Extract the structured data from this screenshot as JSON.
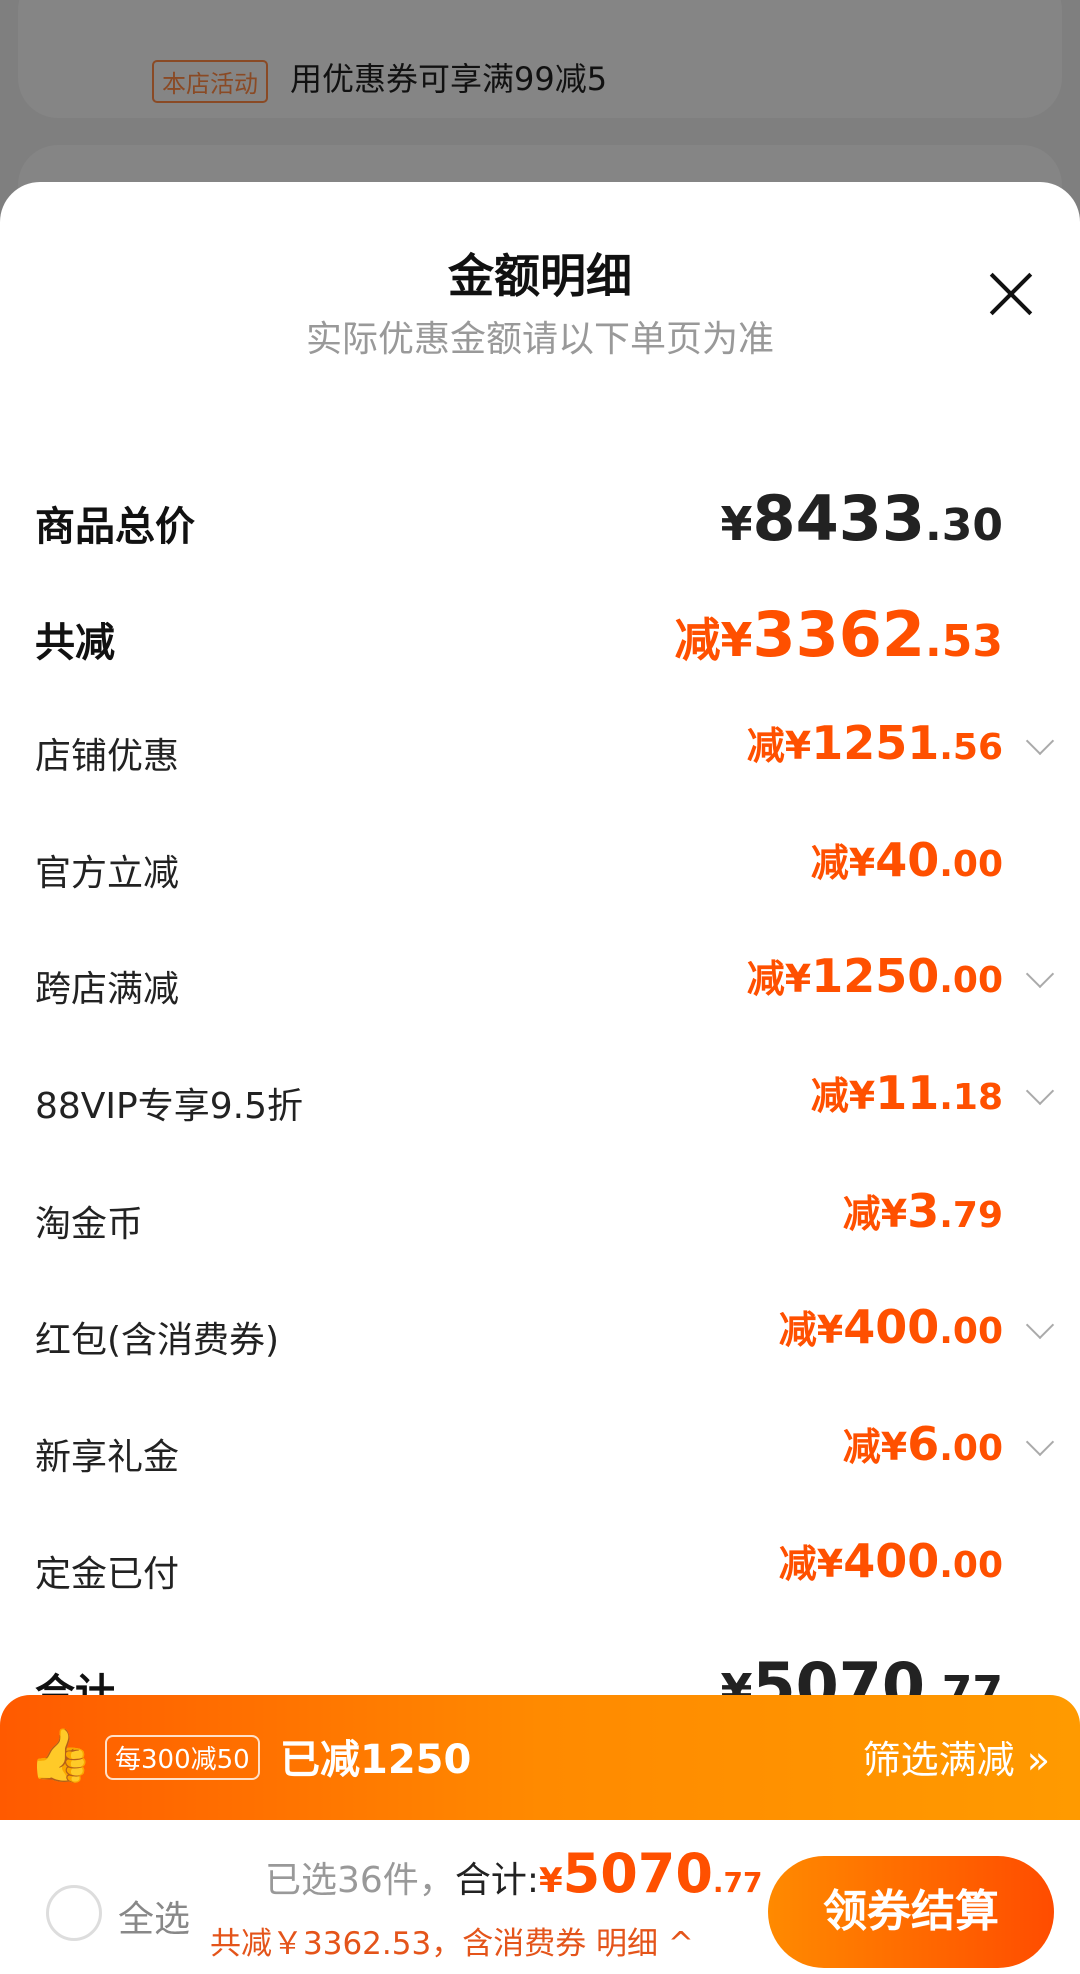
{
  "background": {
    "tag": "本店活动",
    "text": "用优惠券可享满99减5"
  },
  "sheet": {
    "title": "金额明细",
    "subtitle": "实际优惠金额请以下单页为准",
    "rows": [
      {
        "label": "商品总价",
        "prefix": "¥",
        "int": "8433",
        "dec": ".30",
        "bold": true,
        "chevron": false
      },
      {
        "label": "共减",
        "prefix": "减¥",
        "int": "3362",
        "dec": ".53",
        "bold": true,
        "chevron": false
      },
      {
        "label": "店铺优惠",
        "prefix": "减¥",
        "int": "1251",
        "dec": ".56",
        "chevron": true
      },
      {
        "label": "官方立减",
        "prefix": "减¥",
        "int": "40",
        "dec": ".00",
        "chevron": false
      },
      {
        "label": "跨店满减",
        "prefix": "减¥",
        "int": "1250",
        "dec": ".00",
        "chevron": true
      },
      {
        "label": "88VIP专享9.5折",
        "prefix": "减¥",
        "int": "11",
        "dec": ".18",
        "chevron": true
      },
      {
        "label": "淘金币",
        "prefix": "减¥",
        "int": "3",
        "dec": ".79",
        "chevron": false
      },
      {
        "label": "红包(含消费券)",
        "prefix": "减¥",
        "int": "400",
        "dec": ".00",
        "chevron": true
      },
      {
        "label": "新享礼金",
        "prefix": "减¥",
        "int": "6",
        "dec": ".00",
        "chevron": true
      },
      {
        "label": "定金已付",
        "prefix": "减¥",
        "int": "400",
        "dec": ".00",
        "chevron": false
      },
      {
        "label": "合计",
        "prefix": "¥",
        "int": "5070",
        "dec": ".77",
        "bold": true,
        "chevron": false
      }
    ]
  },
  "promo": {
    "icon": "thumbs-up-icon",
    "tag": "每300减50",
    "text": "已减1250",
    "link": "筛选满减 »"
  },
  "bottom": {
    "select_all": "全选",
    "selected": "已选36件，",
    "total_label": "合计:",
    "currency": "¥",
    "total_int": "5070",
    "total_dec": ".77",
    "summary": "共减￥3362.53，含消费券 明细 ^",
    "checkout": "领券结算"
  },
  "colors": {
    "accent": "#ff5000"
  }
}
